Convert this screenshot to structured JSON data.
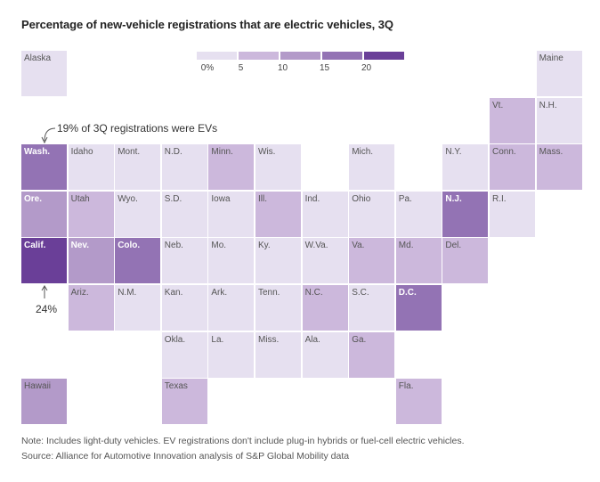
{
  "chart_data": {
    "type": "tile-grid-map",
    "title": "Percentage of new-vehicle registrations that are electric vehicles, 3Q",
    "legend": {
      "ticks": [
        "0%",
        "5",
        "10",
        "15",
        "20"
      ],
      "colors": [
        "#e6e0f0",
        "#ccb8dc",
        "#b39ac9",
        "#9373b4",
        "#6a3f98"
      ]
    },
    "states": [
      {
        "abbr": "Alaska",
        "value": 2,
        "row": 0,
        "col": 0
      },
      {
        "abbr": "Maine",
        "value": 3,
        "row": 0,
        "col": 11
      },
      {
        "abbr": "Vt.",
        "value": 8,
        "row": 1,
        "col": 10
      },
      {
        "abbr": "N.H.",
        "value": 4,
        "row": 1,
        "col": 11
      },
      {
        "abbr": "Wash.",
        "value": 19,
        "row": 2,
        "col": 0
      },
      {
        "abbr": "Idaho",
        "value": 4,
        "row": 2,
        "col": 1
      },
      {
        "abbr": "Mont.",
        "value": 3,
        "row": 2,
        "col": 2
      },
      {
        "abbr": "N.D.",
        "value": 2,
        "row": 2,
        "col": 3
      },
      {
        "abbr": "Minn.",
        "value": 7,
        "row": 2,
        "col": 4
      },
      {
        "abbr": "Wis.",
        "value": 4,
        "row": 2,
        "col": 5
      },
      {
        "abbr": "Mich.",
        "value": 4,
        "row": 2,
        "col": 7
      },
      {
        "abbr": "N.Y.",
        "value": 4,
        "row": 2,
        "col": 9
      },
      {
        "abbr": "Conn.",
        "value": 8,
        "row": 2,
        "col": 10
      },
      {
        "abbr": "Mass.",
        "value": 9,
        "row": 2,
        "col": 11
      },
      {
        "abbr": "Ore.",
        "value": 14,
        "row": 3,
        "col": 0
      },
      {
        "abbr": "Utah",
        "value": 9,
        "row": 3,
        "col": 1
      },
      {
        "abbr": "Wyo.",
        "value": 2,
        "row": 3,
        "col": 2
      },
      {
        "abbr": "S.D.",
        "value": 2,
        "row": 3,
        "col": 3
      },
      {
        "abbr": "Iowa",
        "value": 2,
        "row": 3,
        "col": 4
      },
      {
        "abbr": "Ill.",
        "value": 8,
        "row": 3,
        "col": 5
      },
      {
        "abbr": "Ind.",
        "value": 4,
        "row": 3,
        "col": 6
      },
      {
        "abbr": "Ohio",
        "value": 4,
        "row": 3,
        "col": 7
      },
      {
        "abbr": "Pa.",
        "value": 4,
        "row": 3,
        "col": 8
      },
      {
        "abbr": "N.J.",
        "value": 15,
        "row": 3,
        "col": 9
      },
      {
        "abbr": "R.I.",
        "value": 4,
        "row": 3,
        "col": 10
      },
      {
        "abbr": "Calif.",
        "value": 24,
        "row": 4,
        "col": 0
      },
      {
        "abbr": "Nev.",
        "value": 13,
        "row": 4,
        "col": 1
      },
      {
        "abbr": "Colo.",
        "value": 15,
        "row": 4,
        "col": 2
      },
      {
        "abbr": "Neb.",
        "value": 3,
        "row": 4,
        "col": 3
      },
      {
        "abbr": "Mo.",
        "value": 3,
        "row": 4,
        "col": 4
      },
      {
        "abbr": "Ky.",
        "value": 2,
        "row": 4,
        "col": 5
      },
      {
        "abbr": "W.Va.",
        "value": 1,
        "row": 4,
        "col": 6
      },
      {
        "abbr": "Va.",
        "value": 8,
        "row": 4,
        "col": 7
      },
      {
        "abbr": "Md.",
        "value": 9,
        "row": 4,
        "col": 8
      },
      {
        "abbr": "Del.",
        "value": 8,
        "row": 4,
        "col": 9
      },
      {
        "abbr": "Ariz.",
        "value": 9,
        "row": 5,
        "col": 1
      },
      {
        "abbr": "N.M.",
        "value": 3,
        "row": 5,
        "col": 2
      },
      {
        "abbr": "Kan.",
        "value": 3,
        "row": 5,
        "col": 3
      },
      {
        "abbr": "Ark.",
        "value": 2,
        "row": 5,
        "col": 4
      },
      {
        "abbr": "Tenn.",
        "value": 3,
        "row": 5,
        "col": 5
      },
      {
        "abbr": "N.C.",
        "value": 7,
        "row": 5,
        "col": 6
      },
      {
        "abbr": "S.C.",
        "value": 3,
        "row": 5,
        "col": 7
      },
      {
        "abbr": "D.C.",
        "value": 17,
        "row": 5,
        "col": 8
      },
      {
        "abbr": "Okla.",
        "value": 3,
        "row": 6,
        "col": 3
      },
      {
        "abbr": "La.",
        "value": 2,
        "row": 6,
        "col": 4
      },
      {
        "abbr": "Miss.",
        "value": 1,
        "row": 6,
        "col": 5
      },
      {
        "abbr": "Ala.",
        "value": 2,
        "row": 6,
        "col": 6
      },
      {
        "abbr": "Ga.",
        "value": 8,
        "row": 6,
        "col": 7
      },
      {
        "abbr": "Hawaii",
        "value": 11,
        "row": 7,
        "col": 0
      },
      {
        "abbr": "Texas",
        "value": 7,
        "row": 7,
        "col": 3
      },
      {
        "abbr": "Fla.",
        "value": 7,
        "row": 7,
        "col": 8
      }
    ],
    "annotations": [
      {
        "text": "19% of 3Q registrations were EVs",
        "state": "Wash."
      },
      {
        "text": "24%",
        "state": "Calif."
      }
    ]
  },
  "footer": {
    "note": "Note: Includes light-duty vehicles. EV registrations don't include plug-in hybrids or fuel-cell electric vehicles.",
    "source": "Source: Alliance for Automotive Innovation analysis of S&P Global Mobility data"
  }
}
